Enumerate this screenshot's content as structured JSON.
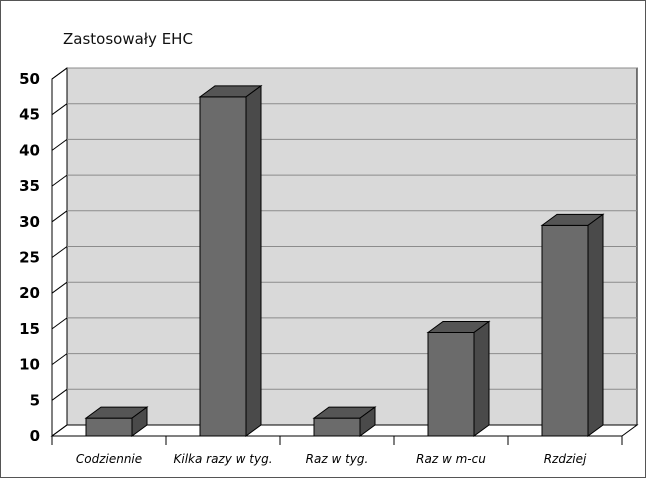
{
  "chart_data": {
    "type": "bar",
    "title": "Zastosowały EHC",
    "categories": [
      "Codziennie",
      "Kilka razy w tyg.",
      "Raz w tyg.",
      "Raz w m-cu",
      "Rzdziej"
    ],
    "values": [
      2.5,
      47.5,
      2.5,
      14.5,
      29.5
    ],
    "yticks": [
      0,
      5,
      10,
      15,
      20,
      25,
      30,
      35,
      40,
      45,
      50
    ],
    "ylim": [
      0,
      50
    ],
    "grid": true,
    "bar_style": "3d",
    "colors": {
      "bar_front": "#6b6b6b",
      "bar_top": "#555555",
      "bar_side": "#4a4a4a",
      "wall": "#d9d9d9",
      "grid": "#8c8c8c",
      "border": "#000000"
    }
  }
}
